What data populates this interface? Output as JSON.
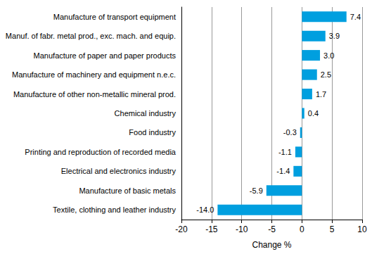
{
  "chart_data": {
    "type": "bar",
    "orientation": "horizontal",
    "x_label": "Change %",
    "categories": [
      "Manufacture of transport equipment",
      "Manuf. of fabr. metal prod., exc. mach. and equip.",
      "Manufacture of paper and paper products",
      "Manufacture of machinery and equipment n.e.c.",
      "Manufacture of other non-metallic mineral prod.",
      "Chemical industry",
      "Food industry",
      "Printing and reproduction of recorded media",
      "Electrical and electronics industry",
      "Manufacture of basic metals",
      "Textile, clothing and leather industry"
    ],
    "values": [
      7.4,
      3.9,
      3.0,
      2.5,
      1.7,
      0.4,
      -0.3,
      -1.1,
      -1.4,
      -5.9,
      -14.0
    ],
    "value_labels": [
      "7.4",
      "3.9",
      "3.0",
      "2.5",
      "1.7",
      "0.4",
      "-0.3",
      "-1.1",
      "-1.4",
      "-5.9",
      "-14.0"
    ],
    "color": "#009fdf",
    "xlim": [
      -20,
      10
    ],
    "xticks": [
      -20,
      -15,
      -10,
      -5,
      0,
      5,
      10
    ],
    "grid": true,
    "data_labels": true
  }
}
